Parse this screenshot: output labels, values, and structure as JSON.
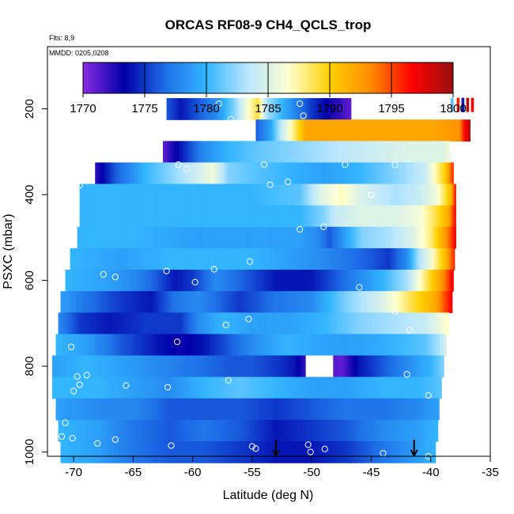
{
  "chart_data": {
    "type": "heatmap",
    "title": "ORCAS RF08-9 CH4_QCLS_trop",
    "flights_label": "Flts: 8,9",
    "dates_label": "MMDD: 0205,0208",
    "xlabel": "Latitude (deg N)",
    "ylabel": "PSXC (mbar)",
    "xlim": [
      -72.2,
      -35
    ],
    "ylim": [
      1010,
      55
    ],
    "x_ticks": [
      -70,
      -65,
      -60,
      -55,
      -50,
      -45,
      -40,
      -35
    ],
    "y_ticks": [
      200,
      400,
      600,
      800,
      1000
    ],
    "colorbar": {
      "min": 1770,
      "max": 1800,
      "ticks": [
        1770,
        1775,
        1780,
        1785,
        1790,
        1795,
        1800
      ],
      "colors": [
        "#8a2be2",
        "#0000a8",
        "#1e6fe8",
        "#33b5ff",
        "#b8e6ff",
        "#ffffd0",
        "#ffd000",
        "#ff8c00",
        "#ff0000",
        "#9a1010"
      ]
    },
    "layer_pressures": [
      200,
      250,
      300,
      350,
      400,
      450,
      500,
      550,
      600,
      650,
      700,
      750,
      800,
      850,
      900,
      950,
      1000
    ],
    "layers": [
      {
        "p": 200,
        "x0": -62.2,
        "x1": -46.7,
        "stops": [
          [
            -62.2,
            1776
          ],
          [
            -61,
            1774
          ],
          [
            -59.5,
            1776
          ],
          [
            -58,
            1778
          ],
          [
            -56.5,
            1782
          ],
          [
            -55.2,
            1787
          ],
          [
            -54.5,
            1789
          ],
          [
            -53.8,
            1783
          ],
          [
            -52.5,
            1780
          ],
          [
            -51.5,
            1778
          ],
          [
            -50,
            1775
          ],
          [
            -48.5,
            1773
          ],
          [
            -46.7,
            1771
          ]
        ]
      },
      {
        "p": 250,
        "x0": -54.7,
        "x1": -36.7,
        "stops": [
          [
            -54.7,
            1776
          ],
          [
            -53.5,
            1779
          ],
          [
            -52.5,
            1784
          ],
          [
            -51.5,
            1788
          ],
          [
            -50.5,
            1792
          ],
          [
            -48,
            1792
          ],
          [
            -44,
            1792
          ],
          [
            -40,
            1792
          ],
          [
            -37.6,
            1793
          ],
          [
            -37.1,
            1797
          ],
          [
            -36.7,
            1799
          ]
        ]
      },
      {
        "p": 300,
        "x0": -62.5,
        "x1": -38.4,
        "stops": [
          [
            -62.5,
            1771
          ],
          [
            -61,
            1774
          ],
          [
            -59,
            1778
          ],
          [
            -57,
            1780
          ],
          [
            -55,
            1781
          ],
          [
            -52,
            1782
          ],
          [
            -49,
            1783
          ],
          [
            -46,
            1784
          ],
          [
            -42,
            1785
          ],
          [
            -39,
            1785
          ],
          [
            -38.4,
            1786
          ]
        ]
      },
      {
        "p": 350,
        "x0": -68.2,
        "x1": -38.1,
        "stops": [
          [
            -68.2,
            1772
          ],
          [
            -66.5,
            1776
          ],
          [
            -64,
            1780
          ],
          [
            -62,
            1782
          ],
          [
            -60,
            1784
          ],
          [
            -58.3,
            1786
          ],
          [
            -57,
            1782
          ],
          [
            -55,
            1781
          ],
          [
            -52,
            1780
          ],
          [
            -49,
            1779
          ],
          [
            -46,
            1780
          ],
          [
            -43,
            1782
          ],
          [
            -40.5,
            1784
          ],
          [
            -38.8,
            1790
          ],
          [
            -38.1,
            1796
          ]
        ]
      },
      {
        "p": 400,
        "x0": -69.5,
        "x1": -37.9,
        "stops": [
          [
            -69.5,
            1780
          ],
          [
            -65,
            1780
          ],
          [
            -60,
            1780
          ],
          [
            -55,
            1780
          ],
          [
            -51,
            1781
          ],
          [
            -49.3,
            1785
          ],
          [
            -47.5,
            1787
          ],
          [
            -46,
            1785
          ],
          [
            -43,
            1783
          ],
          [
            -41,
            1784
          ],
          [
            -39.5,
            1786
          ],
          [
            -38.3,
            1791
          ],
          [
            -37.9,
            1797
          ]
        ]
      },
      {
        "p": 450,
        "x0": -69.5,
        "x1": -37.9,
        "stops": [
          [
            -69.5,
            1780
          ],
          [
            -65,
            1780
          ],
          [
            -60,
            1780
          ],
          [
            -55,
            1780
          ],
          [
            -51,
            1780
          ],
          [
            -49,
            1782
          ],
          [
            -48,
            1784
          ],
          [
            -46,
            1785
          ],
          [
            -43,
            1785
          ],
          [
            -41,
            1786
          ],
          [
            -39.5,
            1789
          ],
          [
            -38.5,
            1792
          ],
          [
            -37.9,
            1797
          ]
        ]
      },
      {
        "p": 500,
        "x0": -69.7,
        "x1": -37.9,
        "stops": [
          [
            -69.7,
            1780
          ],
          [
            -65,
            1780
          ],
          [
            -60,
            1779
          ],
          [
            -55,
            1779
          ],
          [
            -51,
            1779
          ],
          [
            -49.5,
            1778
          ],
          [
            -48.5,
            1776
          ],
          [
            -47.2,
            1779
          ],
          [
            -45.8,
            1782
          ],
          [
            -43.5,
            1783
          ],
          [
            -41.5,
            1785
          ],
          [
            -40,
            1788
          ],
          [
            -38.7,
            1793
          ],
          [
            -37.9,
            1797
          ]
        ]
      },
      {
        "p": 550,
        "x0": -70.3,
        "x1": -38.0,
        "stops": [
          [
            -70.3,
            1780
          ],
          [
            -66,
            1779
          ],
          [
            -62,
            1780
          ],
          [
            -58,
            1780
          ],
          [
            -55,
            1780
          ],
          [
            -52,
            1779
          ],
          [
            -49,
            1778
          ],
          [
            -47,
            1777
          ],
          [
            -45,
            1776
          ],
          [
            -43.5,
            1775
          ],
          [
            -42,
            1778
          ],
          [
            -41,
            1783
          ],
          [
            -40,
            1786
          ],
          [
            -38.8,
            1791
          ],
          [
            -38,
            1796
          ]
        ]
      },
      {
        "p": 600,
        "x0": -70.7,
        "x1": -38.1,
        "stops": [
          [
            -70.7,
            1780
          ],
          [
            -67,
            1779
          ],
          [
            -65,
            1778
          ],
          [
            -63,
            1776
          ],
          [
            -61.5,
            1774
          ],
          [
            -60,
            1775
          ],
          [
            -58,
            1778
          ],
          [
            -55.5,
            1776
          ],
          [
            -53,
            1774
          ],
          [
            -50,
            1774
          ],
          [
            -47,
            1777
          ],
          [
            -44,
            1780
          ],
          [
            -42,
            1783
          ],
          [
            -40.5,
            1788
          ],
          [
            -39,
            1793
          ],
          [
            -38.1,
            1797
          ]
        ]
      },
      {
        "p": 650,
        "x0": -71.1,
        "x1": -38.2,
        "stops": [
          [
            -71.1,
            1779
          ],
          [
            -69,
            1777
          ],
          [
            -66,
            1775
          ],
          [
            -63.5,
            1774
          ],
          [
            -61.5,
            1777
          ],
          [
            -59.5,
            1778
          ],
          [
            -58.5,
            1777
          ],
          [
            -56,
            1775
          ],
          [
            -53,
            1777
          ],
          [
            -50,
            1778
          ],
          [
            -47,
            1782
          ],
          [
            -44,
            1785
          ],
          [
            -41.5,
            1789
          ],
          [
            -39.6,
            1792
          ],
          [
            -38.8,
            1795
          ],
          [
            -38.2,
            1797
          ]
        ]
      },
      {
        "p": 700,
        "x0": -71.3,
        "x1": -38.5,
        "stops": [
          [
            -71.3,
            1778
          ],
          [
            -69.5,
            1775
          ],
          [
            -67,
            1774
          ],
          [
            -64,
            1775
          ],
          [
            -61,
            1775
          ],
          [
            -59.5,
            1778
          ],
          [
            -57.5,
            1780
          ],
          [
            -55,
            1779
          ],
          [
            -52,
            1779
          ],
          [
            -49,
            1780
          ],
          [
            -46,
            1782
          ],
          [
            -43,
            1783
          ],
          [
            -40.5,
            1784
          ],
          [
            -39,
            1786
          ],
          [
            -38.5,
            1787
          ]
        ]
      },
      {
        "p": 750,
        "x0": -71.5,
        "x1": -38.7,
        "stops": [
          [
            -71.5,
            1780
          ],
          [
            -69,
            1779
          ],
          [
            -66,
            1776
          ],
          [
            -63,
            1774
          ],
          [
            -61,
            1773
          ],
          [
            -59,
            1774
          ],
          [
            -57,
            1776
          ],
          [
            -55,
            1778
          ],
          [
            -52,
            1780
          ],
          [
            -49,
            1779
          ],
          [
            -46,
            1779
          ],
          [
            -43,
            1780
          ],
          [
            -40.5,
            1781
          ],
          [
            -39.3,
            1783
          ],
          [
            -38.7,
            1785
          ]
        ]
      },
      {
        "p": 800,
        "x0": -71.8,
        "x1": -38.9,
        "stops": [
          [
            -71.8,
            1779
          ],
          [
            -69,
            1780
          ],
          [
            -66,
            1779
          ],
          [
            -63,
            1778
          ],
          [
            -60,
            1777
          ],
          [
            -57,
            1776
          ],
          [
            -55,
            1776
          ],
          [
            -53,
            1775
          ],
          [
            -51.5,
            1774
          ],
          [
            -50.5,
            1772
          ],
          [
            -47.5,
            1771
          ],
          [
            -46,
            1774
          ],
          [
            -44,
            1776
          ],
          [
            -42,
            1778
          ],
          [
            -40,
            1780
          ],
          [
            -38.9,
            1782
          ]
        ]
      },
      {
        "p": 850,
        "x0": -71.8,
        "x1": -39.1,
        "stops": [
          [
            -71.8,
            1780
          ],
          [
            -68,
            1780
          ],
          [
            -65,
            1779
          ],
          [
            -62,
            1778
          ],
          [
            -59,
            1780
          ],
          [
            -56,
            1781
          ],
          [
            -53,
            1780
          ],
          [
            -50,
            1779
          ],
          [
            -47,
            1779
          ],
          [
            -44,
            1780
          ],
          [
            -41,
            1780
          ],
          [
            -39.1,
            1781
          ]
        ]
      },
      {
        "p": 900,
        "x0": -71.5,
        "x1": -39.3,
        "stops": [
          [
            -71.5,
            1779
          ],
          [
            -68,
            1778
          ],
          [
            -65,
            1778
          ],
          [
            -62,
            1776
          ],
          [
            -59,
            1776
          ],
          [
            -56,
            1776
          ],
          [
            -53,
            1775
          ],
          [
            -50,
            1776
          ],
          [
            -47,
            1777
          ],
          [
            -44,
            1777
          ],
          [
            -41,
            1778
          ],
          [
            -39.3,
            1779
          ]
        ]
      },
      {
        "p": 950,
        "x0": -71.3,
        "x1": -39.4,
        "stops": [
          [
            -71.3,
            1780
          ],
          [
            -68,
            1779
          ],
          [
            -65,
            1777
          ],
          [
            -62,
            1776
          ],
          [
            -59,
            1777
          ],
          [
            -56,
            1776
          ],
          [
            -53,
            1774
          ],
          [
            -50,
            1775
          ],
          [
            -47,
            1776
          ],
          [
            -44,
            1778
          ],
          [
            -41,
            1779
          ],
          [
            -39.4,
            1780
          ]
        ]
      },
      {
        "p": 1000,
        "x0": -71.1,
        "x1": -39.6,
        "stops": [
          [
            -71.1,
            1780
          ],
          [
            -68,
            1779
          ],
          [
            -65,
            1777
          ],
          [
            -62,
            1776
          ],
          [
            -59,
            1776
          ],
          [
            -56,
            1775
          ],
          [
            -53,
            1774
          ],
          [
            -50,
            1774
          ],
          [
            -47,
            1775
          ],
          [
            -44,
            1777
          ],
          [
            -41,
            1779
          ],
          [
            -39.6,
            1780
          ]
        ]
      }
    ],
    "gap": {
      "p": 800,
      "x0": -50.5,
      "x1": -48.2
    },
    "top_right_strip": [
      {
        "x": -38.2,
        "v": 1781
      },
      {
        "x": -37.7,
        "v": 1796
      },
      {
        "x": -37.3,
        "v": 1774
      },
      {
        "x": -36.9,
        "v": 1799
      },
      {
        "x": -36.5,
        "v": 1797
      }
    ],
    "sample_points": [
      [
        -57.8,
        188
      ],
      [
        -51.0,
        188
      ],
      [
        -50.7,
        216
      ],
      [
        -56.8,
        224
      ],
      [
        -61.2,
        330
      ],
      [
        -54.0,
        330
      ],
      [
        -47.2,
        330
      ],
      [
        -43.0,
        331
      ],
      [
        -60.5,
        339
      ],
      [
        -52.0,
        370
      ],
      [
        -69.5,
        378
      ],
      [
        -53.5,
        377
      ],
      [
        -48.0,
        394
      ],
      [
        -45.0,
        401
      ],
      [
        -51.0,
        481
      ],
      [
        -49.0,
        475
      ],
      [
        -62.2,
        578
      ],
      [
        -58.2,
        574
      ],
      [
        -55.2,
        556
      ],
      [
        -66.5,
        592
      ],
      [
        -67.5,
        586
      ],
      [
        -59.8,
        604
      ],
      [
        -46.0,
        616
      ],
      [
        -43.0,
        672
      ],
      [
        -55.3,
        690
      ],
      [
        -57.2,
        704
      ],
      [
        -41.8,
        716
      ],
      [
        -70.2,
        755
      ],
      [
        -61.3,
        743
      ],
      [
        -50.0,
        806
      ],
      [
        -42.0,
        819
      ],
      [
        -68.9,
        821
      ],
      [
        -69.7,
        824
      ],
      [
        -57.0,
        833
      ],
      [
        -69.5,
        843
      ],
      [
        -65.6,
        845
      ],
      [
        -62.1,
        849
      ],
      [
        -40.2,
        868
      ],
      [
        -70.0,
        858
      ],
      [
        -70.7,
        932
      ],
      [
        -71.0,
        964
      ],
      [
        -70.1,
        968
      ],
      [
        -66.5,
        971
      ],
      [
        -68.0,
        980
      ],
      [
        -61.8,
        985
      ],
      [
        -55.0,
        987
      ],
      [
        -54.7,
        992
      ],
      [
        -50.3,
        983
      ],
      [
        -50.1,
        1000
      ],
      [
        -48.9,
        993
      ],
      [
        -44.0,
        1003
      ],
      [
        -40.2,
        1010
      ]
    ],
    "arrows": [
      {
        "x": -53.0
      },
      {
        "x": -41.4
      }
    ]
  }
}
